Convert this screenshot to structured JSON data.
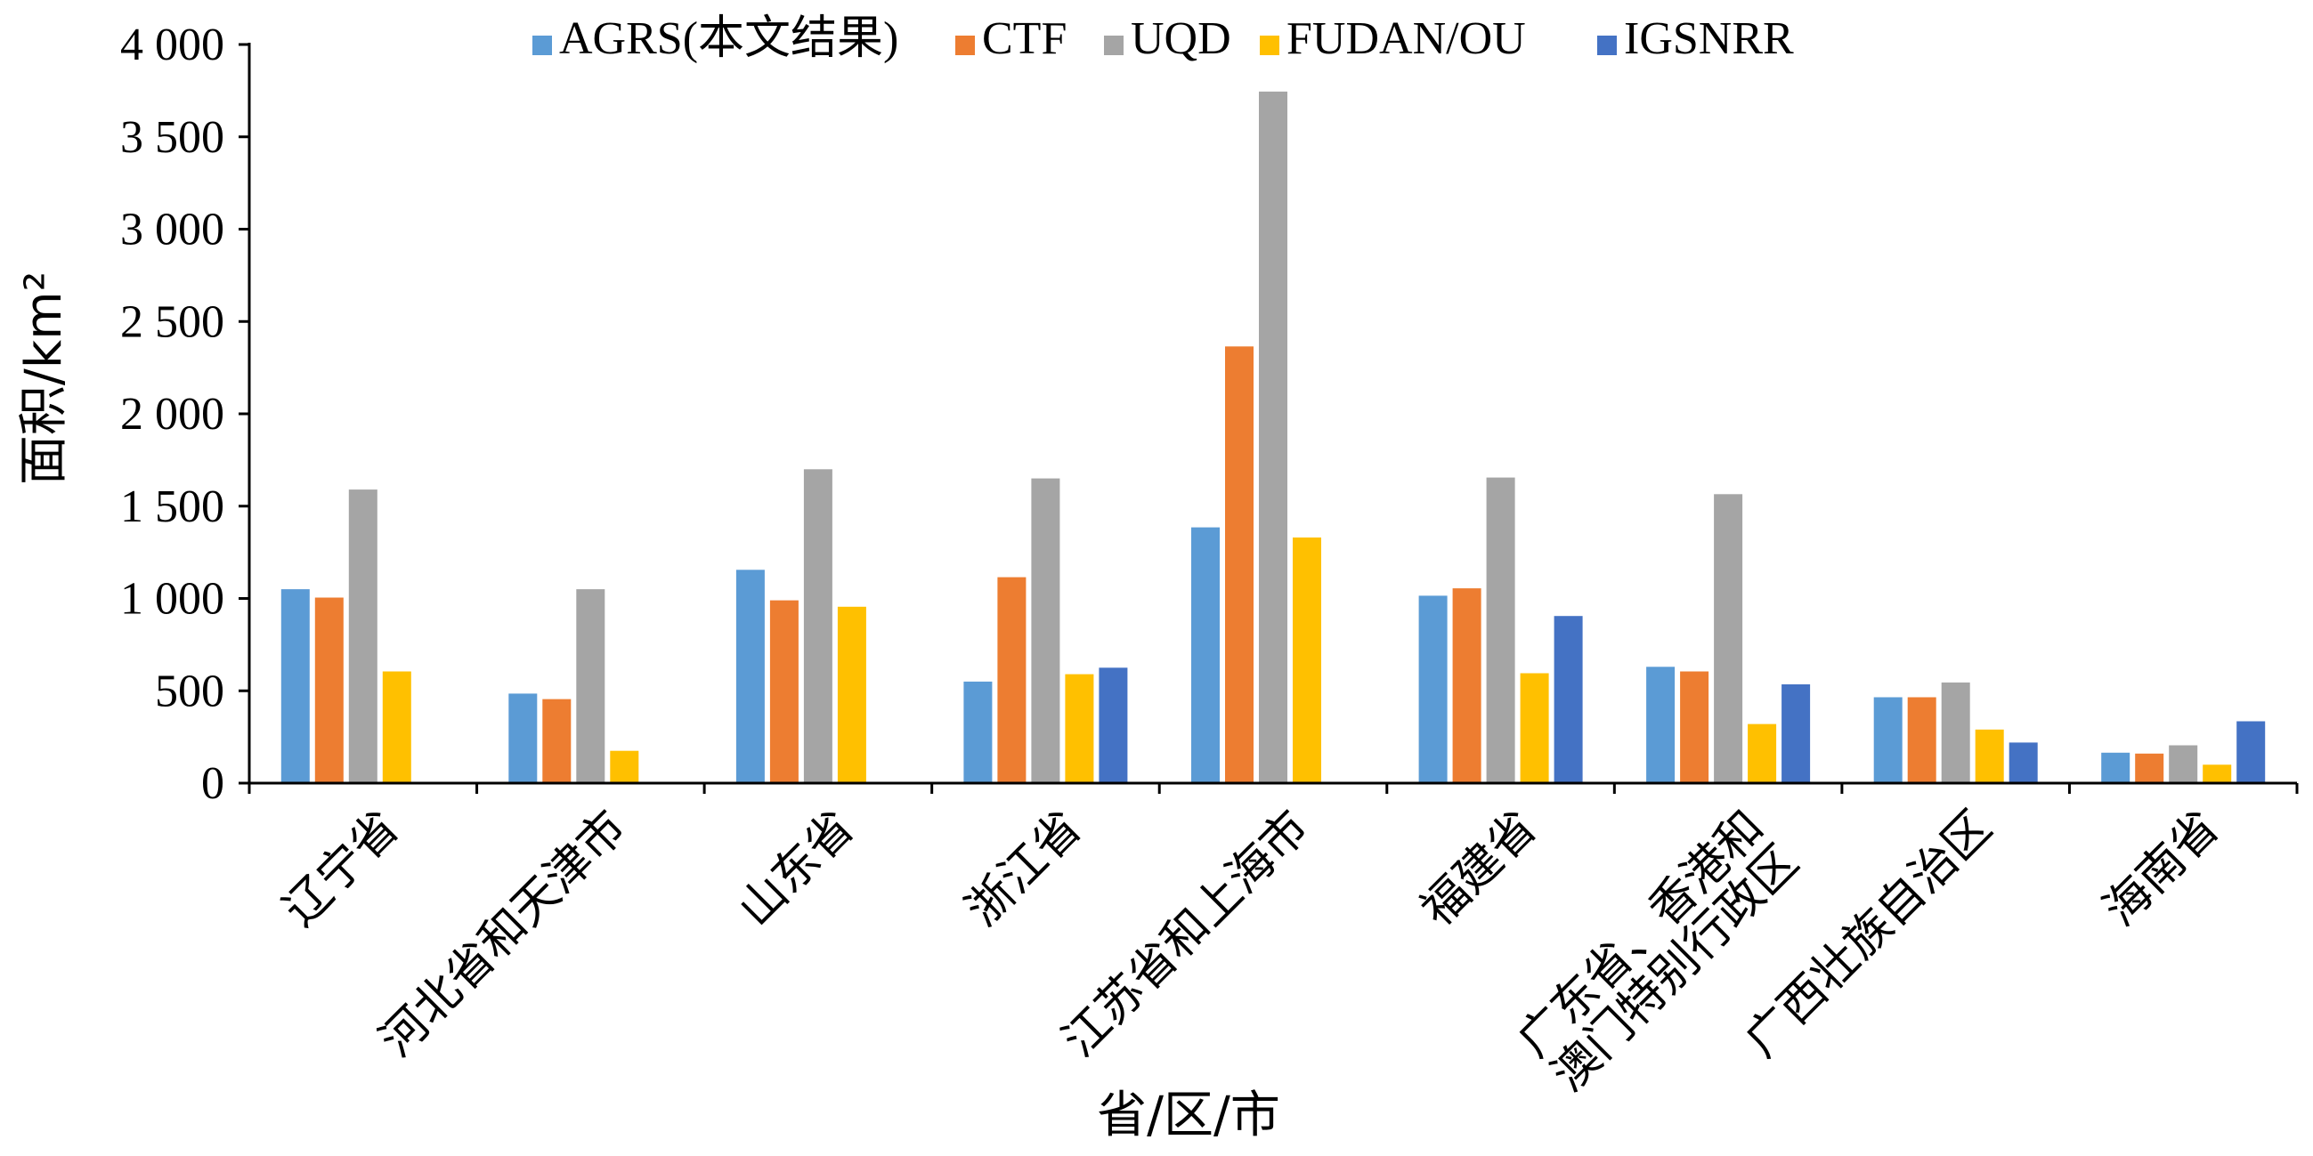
{
  "chart_data": {
    "type": "bar",
    "title": "",
    "xlabel": "省/区/市",
    "ylabel": "面积/km²",
    "ylim": [
      0,
      4000
    ],
    "yticks": [
      0,
      500,
      1000,
      1500,
      2000,
      2500,
      3000,
      3500,
      4000
    ],
    "ytick_labels": [
      "0",
      "500",
      "1 000",
      "1 500",
      "2 000",
      "2 500",
      "3 000",
      "3 500",
      "4 000"
    ],
    "legend_position": "top",
    "grid": false,
    "categories": [
      [
        "辽宁省"
      ],
      [
        "河北省和天津市"
      ],
      [
        "山东省"
      ],
      [
        "浙江省"
      ],
      [
        "江苏省和上海市"
      ],
      [
        "福建省"
      ],
      [
        "广东省、香港和",
        "澳门特别行政区"
      ],
      [
        "广西壮族自治区"
      ],
      [
        "海南省"
      ]
    ],
    "series": [
      {
        "name": "AGRS(本文结果)",
        "color": "#5B9BD5",
        "values": [
          1050,
          485,
          1155,
          550,
          1385,
          1015,
          630,
          465,
          165
        ]
      },
      {
        "name": "CTF",
        "color": "#ED7D31",
        "values": [
          1005,
          455,
          990,
          1115,
          2365,
          1055,
          605,
          465,
          160
        ]
      },
      {
        "name": "UQD",
        "color": "#A5A5A5",
        "values": [
          1590,
          1050,
          1700,
          1650,
          3745,
          1655,
          1565,
          545,
          205
        ]
      },
      {
        "name": "FUDAN/OU",
        "color": "#FFC000",
        "values": [
          605,
          175,
          955,
          590,
          1330,
          595,
          320,
          290,
          100
        ]
      },
      {
        "name": "IGSNRR",
        "color": "#4472C4",
        "values": [
          null,
          null,
          null,
          625,
          null,
          905,
          535,
          220,
          335
        ]
      }
    ]
  }
}
